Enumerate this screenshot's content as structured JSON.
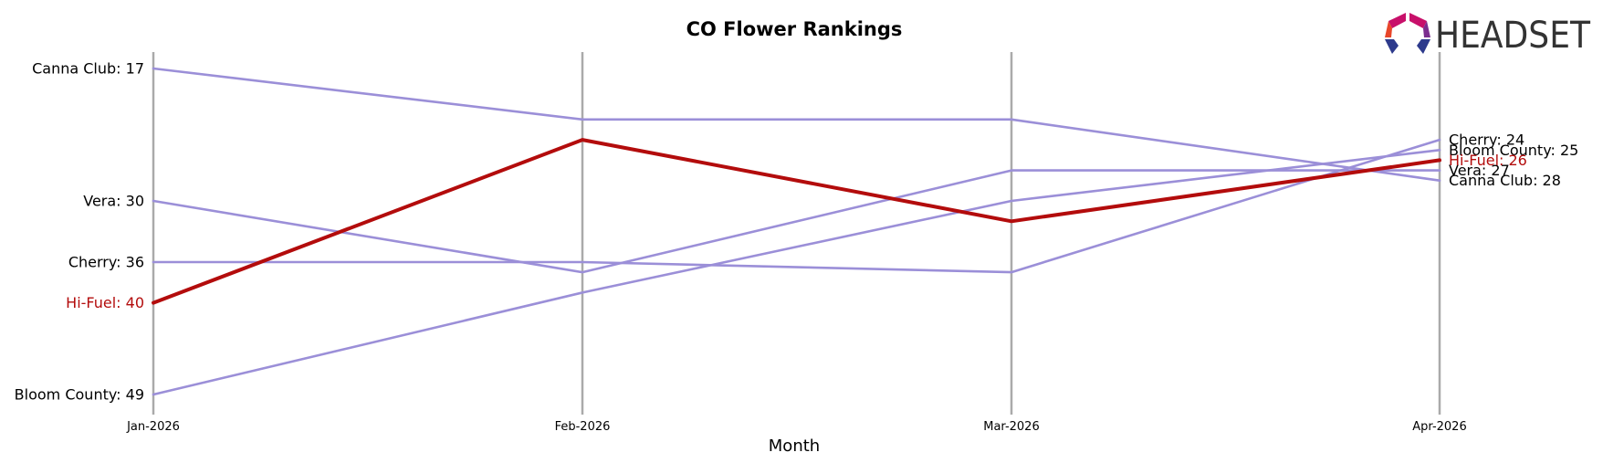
{
  "chart_data": {
    "type": "line",
    "title": "CO Flower Rankings",
    "xlabel": "Month",
    "ylabel": "",
    "x": [
      "Jan-2026",
      "Feb-2026",
      "Mar-2026",
      "Apr-2026"
    ],
    "y_inverted": true,
    "ylim": [
      15,
      50
    ],
    "grid": "vertical lines at each month",
    "series": [
      {
        "name": "Canna Club",
        "values": [
          17,
          22,
          22,
          28
        ],
        "color": "#9b8fd8",
        "highlight": false,
        "start_label": "Canna Club: 17",
        "end_label": "Canna Club: 28"
      },
      {
        "name": "Vera",
        "values": [
          30,
          37,
          27,
          27
        ],
        "color": "#9b8fd8",
        "highlight": false,
        "start_label": "Vera: 30",
        "end_label": "Vera: 27"
      },
      {
        "name": "Cherry",
        "values": [
          36,
          36,
          37,
          24
        ],
        "color": "#9b8fd8",
        "highlight": false,
        "start_label": "Cherry: 36",
        "end_label": "Cherry: 24"
      },
      {
        "name": "Bloom County",
        "values": [
          49,
          39,
          30,
          25
        ],
        "color": "#9b8fd8",
        "highlight": false,
        "start_label": "Bloom County: 49",
        "end_label": "Bloom County: 25"
      },
      {
        "name": "Hi-Fuel",
        "values": [
          40,
          24,
          32,
          26
        ],
        "color": "#b30c0c",
        "highlight": true,
        "start_label": "Hi-Fuel: 40",
        "end_label": "Hi-Fuel: 26"
      }
    ]
  },
  "logo": {
    "text": "HEADSET",
    "colors": [
      "#e8462a",
      "#f59a1b",
      "#c8106a",
      "#7b2d8e",
      "#2d3a8c"
    ]
  }
}
